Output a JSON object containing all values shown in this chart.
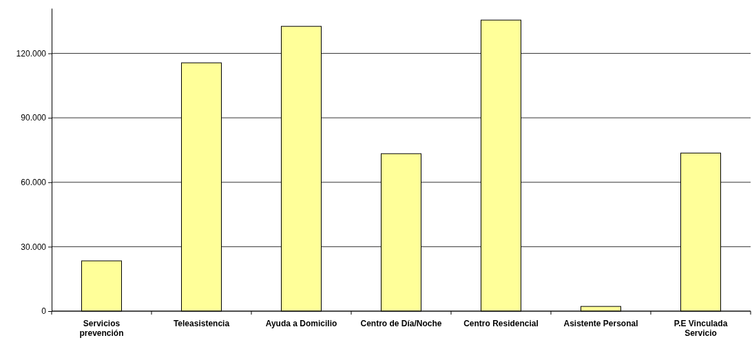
{
  "chart_data": {
    "type": "bar",
    "categories": [
      "Servicios prevención",
      "Teleasistencia",
      "Ayuda a Domicilio",
      "Centro de Día/Noche",
      "Centro Residencial",
      "Asistente Personal",
      "P.E Vinculada Servicio"
    ],
    "values": [
      23400,
      115600,
      132600,
      73300,
      135500,
      2200,
      73600
    ],
    "color": "#ffff99",
    "ylim": [
      0,
      141000
    ],
    "yticks": [
      {
        "value": 0,
        "label": "0"
      },
      {
        "value": 30000,
        "label": "30.000"
      },
      {
        "value": 60000,
        "label": "60.000"
      },
      {
        "value": 90000,
        "label": "90.000"
      },
      {
        "value": 120000,
        "label": "120.000"
      }
    ],
    "grid": "y"
  }
}
